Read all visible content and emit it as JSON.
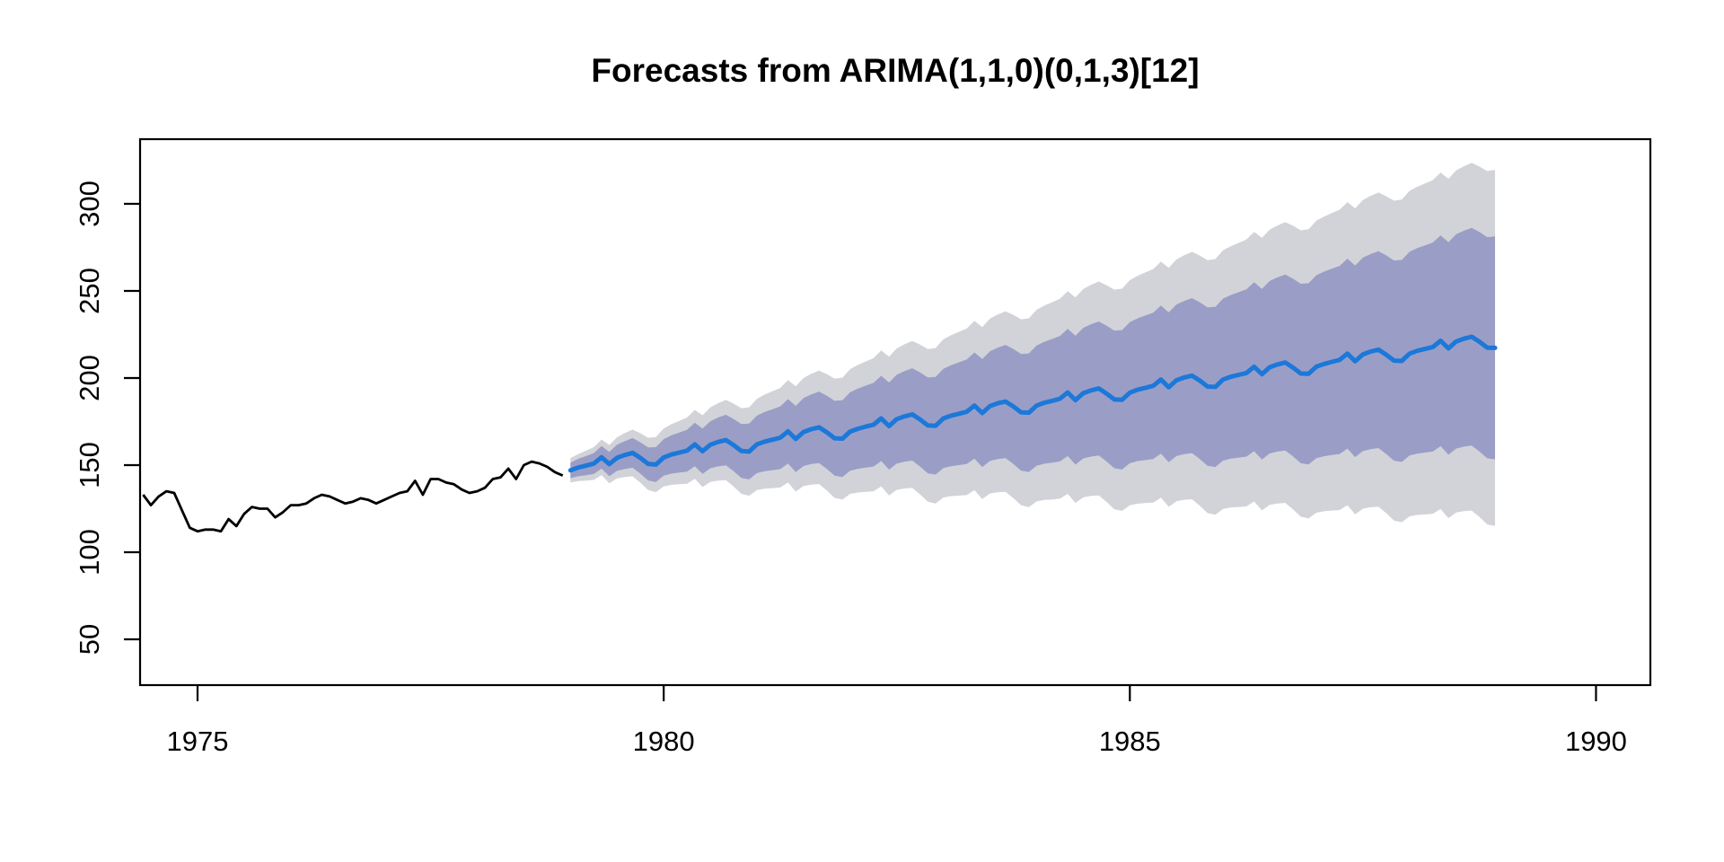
{
  "chart_data": {
    "type": "line",
    "title": "Forecasts from ARIMA(1,1,0)(0,1,3)[12]",
    "xlabel": "",
    "ylabel": "",
    "x_ticks": [
      1975,
      1980,
      1985,
      1990
    ],
    "y_ticks": [
      50,
      100,
      150,
      200,
      250,
      300
    ],
    "xlim": [
      1974.38,
      1990.55
    ],
    "ylim": [
      23,
      337
    ],
    "grid": false,
    "legend": "none",
    "frame_color": "#000000",
    "background": "#ffffff",
    "series": [
      {
        "name": "observed-history",
        "color": "#000000",
        "start": 1974.4167,
        "points_per_year": 12,
        "values": [
          133,
          127,
          132,
          135,
          134,
          124,
          114,
          112,
          113,
          113,
          112,
          119,
          115,
          122,
          126,
          125,
          125,
          120,
          123,
          127,
          127,
          128,
          131,
          133,
          132,
          130,
          128,
          129,
          131,
          130,
          128,
          130,
          132,
          134,
          135,
          141,
          133,
          142,
          142,
          140,
          139,
          136,
          134,
          135,
          137,
          142,
          143,
          148,
          142,
          150,
          152,
          151,
          149,
          146,
          144
        ]
      },
      {
        "name": "forecast-mean",
        "color": "#1c78d9",
        "start": 1979.0,
        "points_per_year": 12,
        "values": [
          147.0,
          148.6,
          149.7,
          150.9,
          154.5,
          150.6,
          154.2,
          155.8,
          157.0,
          154.1,
          150.7,
          150.3,
          154.4,
          156.1,
          157.2,
          158.3,
          161.9,
          158.0,
          161.7,
          163.3,
          164.4,
          161.5,
          158.1,
          157.8,
          161.9,
          163.5,
          164.6,
          165.7,
          169.4,
          165.0,
          169.0,
          170.6,
          171.7,
          168.8,
          165.4,
          165.2,
          169.3,
          170.9,
          172.1,
          173.2,
          176.8,
          172.4,
          176.4,
          178.0,
          179.1,
          176.2,
          172.8,
          172.6,
          176.8,
          178.4,
          179.5,
          180.6,
          184.2,
          179.9,
          183.9,
          185.5,
          186.5,
          183.7,
          180.3,
          180.1,
          184.2,
          185.8,
          186.9,
          188.1,
          191.7,
          187.3,
          191.3,
          192.9,
          194.0,
          191.1,
          187.7,
          187.5,
          191.6,
          193.3,
          194.4,
          195.5,
          199.1,
          194.7,
          198.7,
          200.3,
          201.4,
          198.5,
          195.1,
          194.9,
          199.1,
          200.7,
          201.8,
          202.9,
          206.5,
          202.2,
          206.2,
          207.8,
          208.9,
          206.0,
          202.6,
          202.4,
          206.5,
          208.1,
          209.3,
          210.4,
          214.0,
          209.6,
          213.6,
          215.2,
          216.3,
          213.4,
          210.0,
          209.8,
          214.0,
          215.6,
          216.7,
          217.8,
          221.4,
          217.0,
          221.0,
          222.6,
          223.7,
          220.8,
          217.4,
          217.3
        ]
      }
    ],
    "intervals": {
      "level80": {
        "label": "80%",
        "color": "#9a9ec6",
        "halfwidth_start": 4.5,
        "halfwidth_step_per_month": 0.5,
        "end_values": {
          "lo": 153.3,
          "hi": 281.3
        }
      },
      "level95": {
        "label": "95%",
        "color": "#d2d3d8",
        "halfwidth_start": 7.0,
        "halfwidth_step_per_month": 0.8,
        "end_values": {
          "lo": 115.1,
          "hi": 319.5
        }
      }
    }
  }
}
